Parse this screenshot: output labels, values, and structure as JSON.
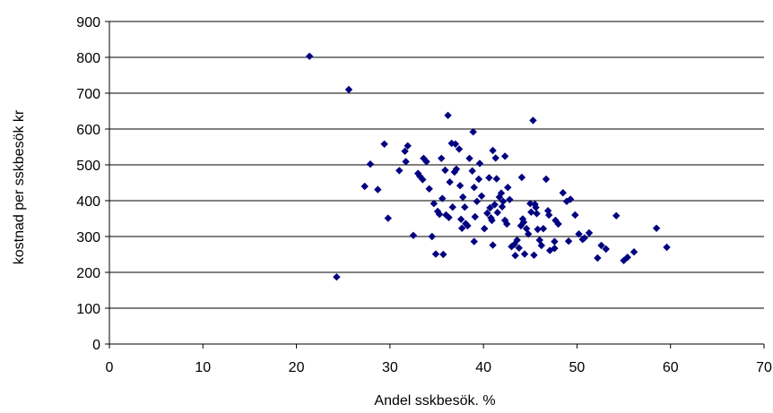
{
  "chart_data": {
    "type": "scatter",
    "title": "",
    "xlabel": "Andel sskbesök. %",
    "ylabel": "kostnad per sskbesök kr",
    "xlim": [
      0,
      70
    ],
    "ylim": [
      0,
      900
    ],
    "x_ticks": [
      "0",
      "10",
      "20",
      "30",
      "40",
      "50",
      "60",
      "70"
    ],
    "y_ticks": [
      "0",
      "100",
      "200",
      "300",
      "400",
      "500",
      "600",
      "700",
      "800",
      "900"
    ],
    "grid": "horizontal",
    "legend": "none",
    "marker_color": "#000080",
    "points": [
      [
        21.4,
        803
      ],
      [
        25.6,
        710
      ],
      [
        24.3,
        187
      ],
      [
        27.3,
        440
      ],
      [
        27.9,
        502
      ],
      [
        28.7,
        431
      ],
      [
        29.4,
        558
      ],
      [
        29.8,
        351
      ],
      [
        31.0,
        484
      ],
      [
        31.6,
        538
      ],
      [
        31.9,
        553
      ],
      [
        31.7,
        509
      ],
      [
        32.5,
        303
      ],
      [
        33.0,
        476
      ],
      [
        33.2,
        468
      ],
      [
        33.5,
        459
      ],
      [
        33.6,
        518
      ],
      [
        33.9,
        509
      ],
      [
        34.2,
        433
      ],
      [
        34.5,
        300
      ],
      [
        34.7,
        392
      ],
      [
        34.9,
        251
      ],
      [
        35.1,
        370
      ],
      [
        35.3,
        362
      ],
      [
        35.5,
        518
      ],
      [
        35.6,
        406
      ],
      [
        35.7,
        250
      ],
      [
        35.9,
        485
      ],
      [
        36.0,
        360
      ],
      [
        36.2,
        638
      ],
      [
        36.3,
        353
      ],
      [
        36.4,
        452
      ],
      [
        36.6,
        560
      ],
      [
        36.7,
        382
      ],
      [
        36.9,
        480
      ],
      [
        37.0,
        558
      ],
      [
        37.1,
        488
      ],
      [
        37.4,
        544
      ],
      [
        37.5,
        442
      ],
      [
        37.6,
        348
      ],
      [
        37.7,
        323
      ],
      [
        37.8,
        410
      ],
      [
        38.0,
        382
      ],
      [
        38.1,
        336
      ],
      [
        38.3,
        330
      ],
      [
        38.5,
        518
      ],
      [
        38.8,
        483
      ],
      [
        38.9,
        592
      ],
      [
        39.0,
        437
      ],
      [
        39.1,
        355
      ],
      [
        39.0,
        286
      ],
      [
        39.3,
        398
      ],
      [
        39.5,
        460
      ],
      [
        39.6,
        504
      ],
      [
        39.8,
        413
      ],
      [
        40.1,
        322
      ],
      [
        40.4,
        365
      ],
      [
        40.6,
        464
      ],
      [
        40.7,
        380
      ],
      [
        40.8,
        352
      ],
      [
        40.9,
        345
      ],
      [
        41.0,
        540
      ],
      [
        41.0,
        276
      ],
      [
        41.2,
        389
      ],
      [
        41.3,
        519
      ],
      [
        41.4,
        461
      ],
      [
        41.5,
        367
      ],
      [
        41.7,
        410
      ],
      [
        41.9,
        421
      ],
      [
        42.0,
        383
      ],
      [
        42.1,
        398
      ],
      [
        42.3,
        524
      ],
      [
        42.3,
        345
      ],
      [
        42.5,
        335
      ],
      [
        42.6,
        437
      ],
      [
        42.8,
        403
      ],
      [
        43.0,
        272
      ],
      [
        43.3,
        278
      ],
      [
        43.4,
        247
      ],
      [
        43.6,
        290
      ],
      [
        43.8,
        268
      ],
      [
        44.0,
        330
      ],
      [
        44.1,
        465
      ],
      [
        44.2,
        349
      ],
      [
        44.3,
        340
      ],
      [
        44.4,
        251
      ],
      [
        44.6,
        322
      ],
      [
        44.8,
        307
      ],
      [
        45.0,
        392
      ],
      [
        45.1,
        368
      ],
      [
        45.3,
        624
      ],
      [
        45.4,
        248
      ],
      [
        45.5,
        390
      ],
      [
        45.6,
        381
      ],
      [
        45.7,
        364
      ],
      [
        45.8,
        320
      ],
      [
        46.0,
        290
      ],
      [
        46.2,
        275
      ],
      [
        46.4,
        322
      ],
      [
        46.7,
        460
      ],
      [
        46.9,
        372
      ],
      [
        47.0,
        360
      ],
      [
        47.1,
        261
      ],
      [
        47.6,
        267
      ],
      [
        47.6,
        286
      ],
      [
        47.7,
        345
      ],
      [
        48.0,
        335
      ],
      [
        48.5,
        422
      ],
      [
        48.9,
        398
      ],
      [
        49.1,
        287
      ],
      [
        49.3,
        404
      ],
      [
        49.8,
        360
      ],
      [
        50.2,
        307
      ],
      [
        50.6,
        292
      ],
      [
        50.8,
        296
      ],
      [
        51.3,
        310
      ],
      [
        52.2,
        240
      ],
      [
        52.6,
        275
      ],
      [
        53.1,
        265
      ],
      [
        54.2,
        358
      ],
      [
        55.0,
        233
      ],
      [
        55.4,
        242
      ],
      [
        56.1,
        257
      ],
      [
        58.5,
        323
      ],
      [
        59.6,
        270
      ]
    ]
  }
}
